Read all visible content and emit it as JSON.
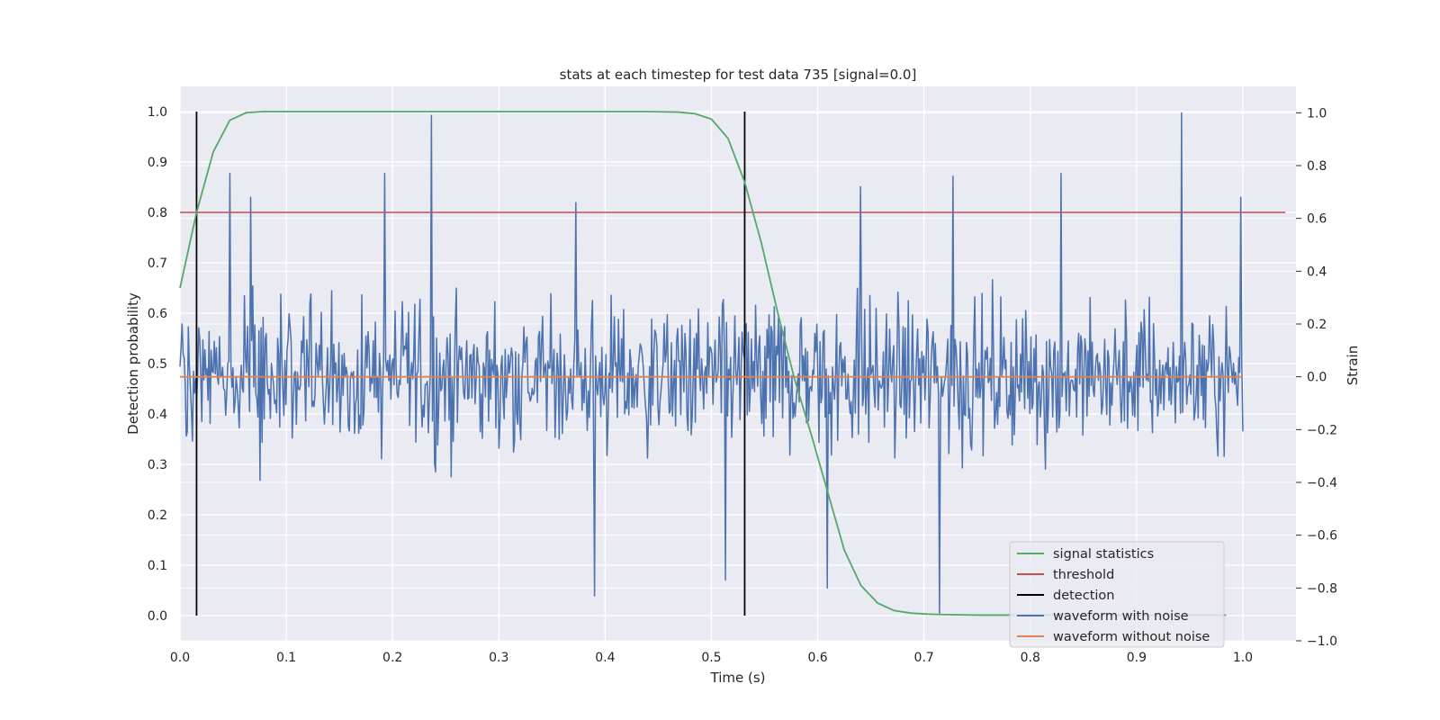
{
  "chart_data": {
    "type": "line",
    "title": "stats at each timestep for test data 735 [signal=0.0]",
    "xlabel": "Time (s)",
    "ylabel_left": "Detection probability",
    "ylabel_right": "Strain",
    "xlim": [
      0.0,
      1.05
    ],
    "ylim_left": [
      -0.05,
      1.05
    ],
    "ylim_right": [
      -1.0,
      1.1
    ],
    "x_ticks": [
      "0.0",
      "0.1",
      "0.2",
      "0.3",
      "0.4",
      "0.5",
      "0.6",
      "0.7",
      "0.8",
      "0.9",
      "1.0"
    ],
    "y_ticks_left": [
      "0.0",
      "0.1",
      "0.2",
      "0.3",
      "0.4",
      "0.5",
      "0.6",
      "0.7",
      "0.8",
      "0.9",
      "1.0"
    ],
    "y_ticks_right": [
      "−1.0",
      "−0.8",
      "−0.6",
      "−0.4",
      "−0.2",
      "0.0",
      "0.2",
      "0.4",
      "0.6",
      "0.8",
      "1.0"
    ],
    "grid": true,
    "legend_position": "lower-right",
    "series": [
      {
        "name": "signal statistics",
        "axis": "left",
        "color": "#55a868",
        "x": [
          0.0,
          0.0156,
          0.0313,
          0.0469,
          0.0625,
          0.0781,
          0.0938,
          0.1094,
          0.125,
          0.25,
          0.375,
          0.4375,
          0.4688,
          0.4844,
          0.5,
          0.5156,
          0.5313,
          0.5469,
          0.5625,
          0.5781,
          0.5938,
          0.6094,
          0.625,
          0.6406,
          0.6563,
          0.6719,
          0.6875,
          0.7031,
          0.7188,
          0.75,
          0.8125,
          0.875,
          0.9375,
          0.9844
        ],
        "y": [
          0.65,
          0.8,
          0.92,
          0.983,
          0.998,
          1.0,
          1.0,
          1.0,
          1.0,
          1.0,
          1.0,
          1.0,
          0.999,
          0.996,
          0.985,
          0.947,
          0.86,
          0.74,
          0.6,
          0.47,
          0.36,
          0.245,
          0.13,
          0.06,
          0.025,
          0.01,
          0.005,
          0.003,
          0.002,
          0.001,
          0.001,
          0.001,
          0.001,
          0.001
        ]
      },
      {
        "name": "threshold",
        "axis": "left",
        "color": "#c44e52",
        "x": [
          0.0,
          1.04
        ],
        "y": [
          0.8,
          0.8
        ]
      },
      {
        "name": "detection",
        "axis": "left",
        "color": "#000000",
        "vlines": [
          0.0156,
          0.5313
        ],
        "ymin": 0.0,
        "ymax": 1.0
      },
      {
        "name": "waveform with noise",
        "axis": "right",
        "color": "#4c72b0",
        "x_range": [
          0.0,
          1.0
        ],
        "n_points": 1024,
        "peaks": [
          {
            "x": 0.047,
            "y": 0.77
          },
          {
            "x": 0.066,
            "y": 0.68
          },
          {
            "x": 0.193,
            "y": 0.77
          },
          {
            "x": 0.237,
            "y": 0.99
          },
          {
            "x": 0.372,
            "y": 0.66
          },
          {
            "x": 0.39,
            "y": -0.83
          },
          {
            "x": 0.513,
            "y": -0.77
          },
          {
            "x": 0.64,
            "y": 0.72
          },
          {
            "x": 0.609,
            "y": -0.8
          },
          {
            "x": 0.715,
            "y": -0.9
          },
          {
            "x": 0.727,
            "y": 0.76
          },
          {
            "x": 0.829,
            "y": 0.77
          },
          {
            "x": 0.942,
            "y": 1.0
          },
          {
            "x": 0.998,
            "y": 0.68
          }
        ]
      },
      {
        "name": "waveform without noise",
        "axis": "right",
        "color": "#dd8452",
        "x": [
          0.0,
          1.0
        ],
        "y": [
          0.0,
          0.0
        ]
      }
    ]
  }
}
